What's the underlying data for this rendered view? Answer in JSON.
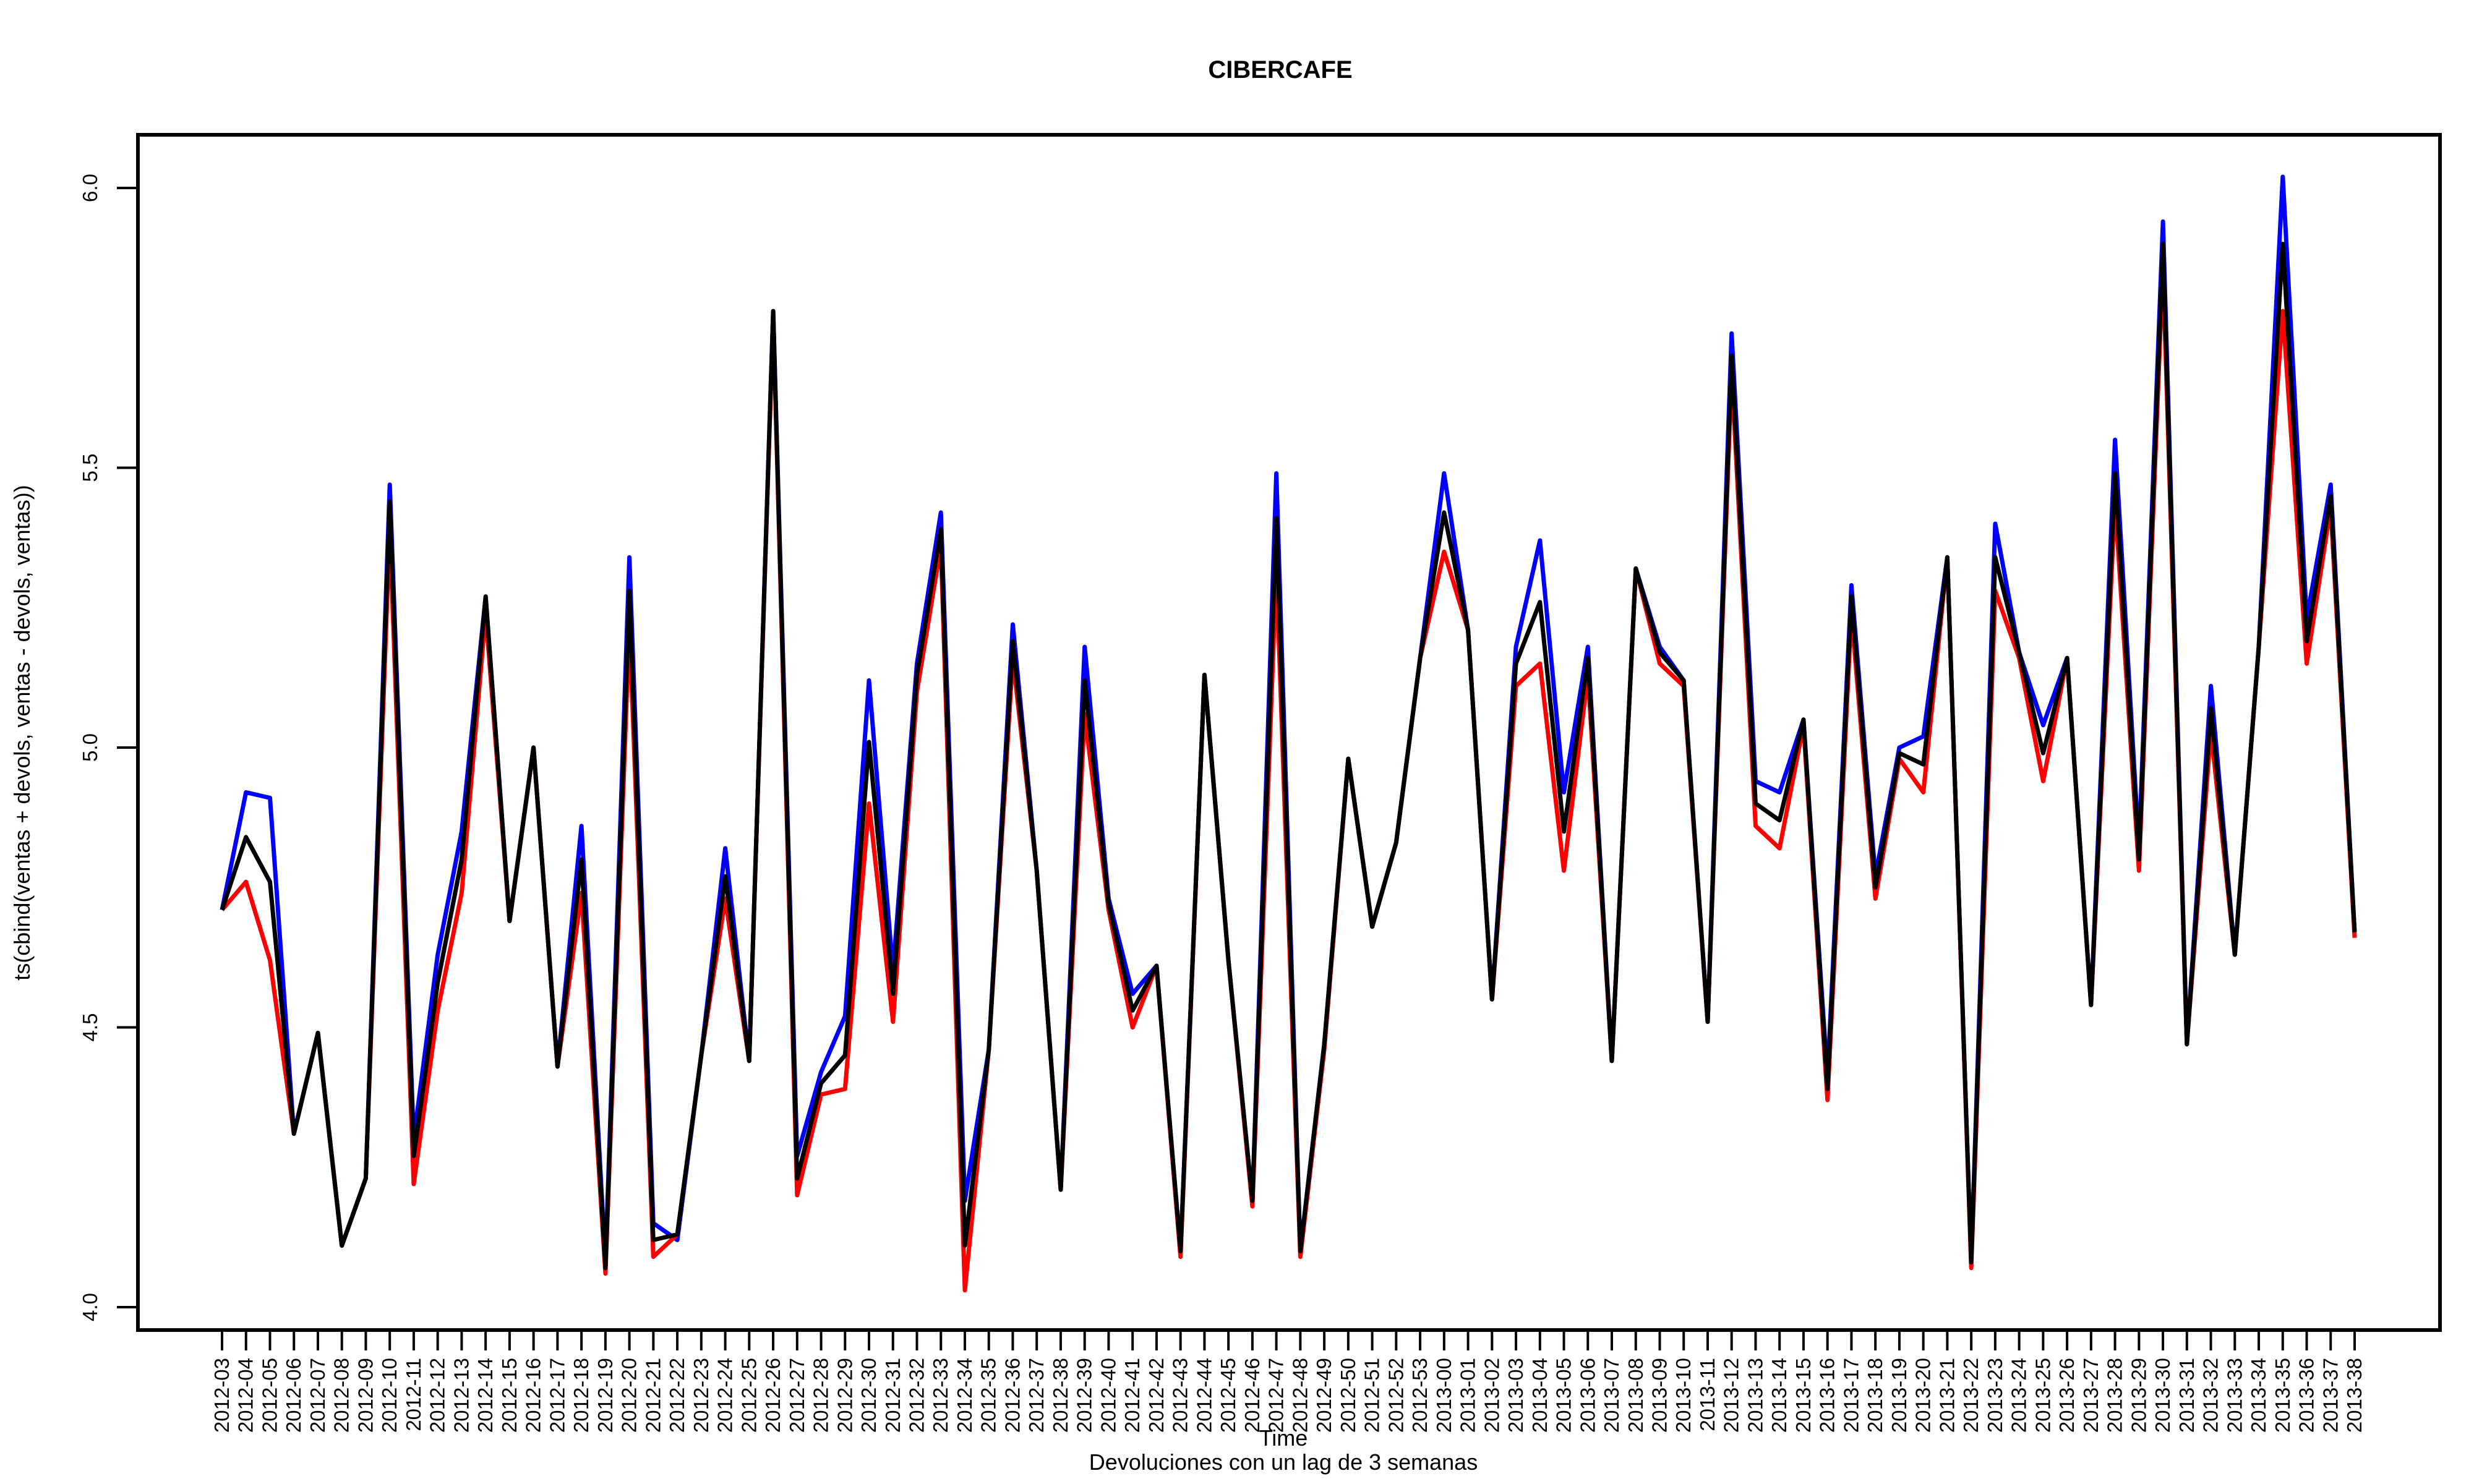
{
  "chart_data": {
    "type": "line",
    "title": "CIBERCAFE",
    "xlabel": "Time",
    "ylabel": "ts(cbind(ventas + devols, ventas - devols, ventas))",
    "sub": "Devoluciones con un lag de 3 semanas",
    "ylim": [
      3.95,
      6.1
    ],
    "yticks": [
      4.0,
      4.5,
      5.0,
      5.5,
      6.0
    ],
    "yticklabels": [
      "4.0",
      "4.5",
      "5.0",
      "5.5",
      "6.0"
    ],
    "grid": false,
    "legend": "none",
    "categories": [
      "2012-03",
      "2012-04",
      "2012-05",
      "2012-06",
      "2012-07",
      "2012-08",
      "2012-09",
      "2012-10",
      "2012-11",
      "2012-12",
      "2012-13",
      "2012-14",
      "2012-15",
      "2012-16",
      "2012-17",
      "2012-18",
      "2012-19",
      "2012-20",
      "2012-21",
      "2012-22",
      "2012-23",
      "2012-24",
      "2012-25",
      "2012-26",
      "2012-27",
      "2012-28",
      "2012-29",
      "2012-30",
      "2012-31",
      "2012-32",
      "2012-33",
      "2012-34",
      "2012-35",
      "2012-36",
      "2012-37",
      "2012-38",
      "2012-39",
      "2012-40",
      "2012-41",
      "2012-42",
      "2012-43",
      "2012-44",
      "2012-45",
      "2012-46",
      "2012-47",
      "2012-48",
      "2012-49",
      "2012-50",
      "2012-51",
      "2012-52",
      "2012-53",
      "2013-00",
      "2013-01",
      "2013-02",
      "2013-03",
      "2013-04",
      "2013-05",
      "2013-06",
      "2013-07",
      "2013-08",
      "2013-09",
      "2013-10",
      "2013-11",
      "2013-12",
      "2013-13",
      "2013-14",
      "2013-15",
      "2013-16",
      "2013-17",
      "2013-18",
      "2013-19",
      "2013-20",
      "2013-21",
      "2013-22",
      "2013-23",
      "2013-24",
      "2013-25",
      "2013-26",
      "2013-27",
      "2013-28",
      "2013-29",
      "2013-30",
      "2013-31",
      "2013-32",
      "2013-33",
      "2013-34",
      "2013-35",
      "2013-36",
      "2013-37",
      "2013-38"
    ],
    "series": [
      {
        "color": "#0000ff",
        "values": [
          4.71,
          4.92,
          4.91,
          4.31,
          4.49,
          4.11,
          4.23,
          5.47,
          4.3,
          4.63,
          4.85,
          5.27,
          4.69,
          5.0,
          4.43,
          4.86,
          4.08,
          5.34,
          4.15,
          4.12,
          4.45,
          4.82,
          4.44,
          5.78,
          4.27,
          4.42,
          4.52,
          5.12,
          4.6,
          5.15,
          5.42,
          4.19,
          4.46,
          5.22,
          4.78,
          4.21,
          5.18,
          4.73,
          4.56,
          4.61,
          4.1,
          5.13,
          4.62,
          4.19,
          5.49,
          4.1,
          4.47,
          4.98,
          4.68,
          4.83,
          5.16,
          5.49,
          5.21,
          4.55,
          5.18,
          5.37,
          4.92,
          5.18,
          4.44,
          5.32,
          5.18,
          5.12,
          4.51,
          5.74,
          4.94,
          4.92,
          5.05,
          4.41,
          5.29,
          4.77,
          5.0,
          5.02,
          5.34,
          4.08,
          5.4,
          5.17,
          5.04,
          5.16,
          4.54,
          5.55,
          4.82,
          5.94,
          4.47,
          5.11,
          4.63,
          5.18,
          6.02,
          5.23,
          5.47,
          4.67
        ]
      },
      {
        "color": "#ff0000",
        "values": [
          4.71,
          4.76,
          4.62,
          4.31,
          4.49,
          4.11,
          4.23,
          5.39,
          4.22,
          4.53,
          4.74,
          5.24,
          4.69,
          5.0,
          4.43,
          4.74,
          4.06,
          5.22,
          4.09,
          4.13,
          4.45,
          4.73,
          4.44,
          5.77,
          4.2,
          4.38,
          4.39,
          4.9,
          4.51,
          5.1,
          5.36,
          4.03,
          4.46,
          5.16,
          4.78,
          4.21,
          5.06,
          4.71,
          4.5,
          4.61,
          4.09,
          5.13,
          4.62,
          4.18,
          5.32,
          4.09,
          4.46,
          4.98,
          4.68,
          4.83,
          5.16,
          5.35,
          5.21,
          4.55,
          5.11,
          5.15,
          4.78,
          5.13,
          4.44,
          5.32,
          5.15,
          5.11,
          4.51,
          5.67,
          4.86,
          4.82,
          5.04,
          4.37,
          5.24,
          4.73,
          4.98,
          4.92,
          5.34,
          4.07,
          5.28,
          5.16,
          4.94,
          5.16,
          4.54,
          5.44,
          4.78,
          5.86,
          4.47,
          5.03,
          4.63,
          5.18,
          5.78,
          5.15,
          5.43,
          4.66
        ]
      },
      {
        "color": "#000000",
        "values": [
          4.71,
          4.84,
          4.76,
          4.31,
          4.49,
          4.11,
          4.23,
          5.44,
          4.27,
          4.58,
          4.8,
          5.27,
          4.69,
          5.0,
          4.43,
          4.8,
          4.07,
          5.28,
          4.12,
          4.13,
          4.45,
          4.77,
          4.44,
          5.78,
          4.23,
          4.4,
          4.45,
          5.01,
          4.56,
          5.13,
          5.39,
          4.11,
          4.46,
          5.19,
          4.78,
          4.21,
          5.12,
          4.72,
          4.53,
          4.61,
          4.1,
          5.13,
          4.62,
          4.19,
          5.41,
          4.1,
          4.47,
          4.98,
          4.68,
          4.83,
          5.16,
          5.42,
          5.21,
          4.55,
          5.15,
          5.26,
          4.85,
          5.16,
          4.44,
          5.32,
          5.17,
          5.12,
          4.51,
          5.7,
          4.9,
          4.87,
          5.05,
          4.39,
          5.27,
          4.75,
          4.99,
          4.97,
          5.34,
          4.08,
          5.34,
          5.17,
          4.99,
          5.16,
          4.54,
          5.49,
          4.8,
          5.9,
          4.47,
          5.07,
          4.63,
          5.18,
          5.9,
          5.19,
          5.45,
          4.67
        ]
      }
    ]
  }
}
